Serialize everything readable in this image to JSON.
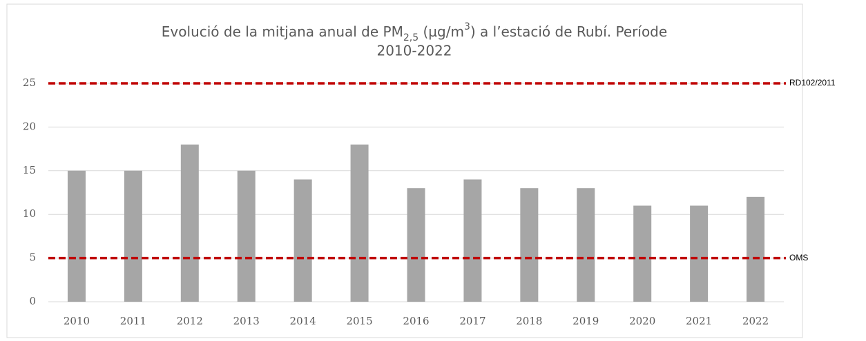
{
  "chart_data": {
    "type": "bar",
    "title": [
      "Evolució de la mitjana anual de PM",
      "2,5",
      " (µg/m",
      "3",
      ") a l’estació de Rubí. Període",
      "2010-2022"
    ],
    "categories": [
      "2010",
      "2011",
      "2012",
      "2013",
      "2014",
      "2015",
      "2016",
      "2017",
      "2018",
      "2019",
      "2020",
      "2021",
      "2022"
    ],
    "values": [
      15,
      15,
      18,
      15,
      14,
      18,
      13,
      14,
      13,
      13,
      11,
      11,
      12
    ],
    "color": "#a6a6a6",
    "ylim": [
      0,
      25
    ],
    "yticks": [
      0,
      5,
      10,
      15,
      20,
      25
    ],
    "grid": true,
    "reference_lines": [
      {
        "label": "RD102/2011",
        "value": 25,
        "color": "#c00000"
      },
      {
        "label": "OMS",
        "value": 5,
        "color": "#c00000"
      }
    ]
  }
}
